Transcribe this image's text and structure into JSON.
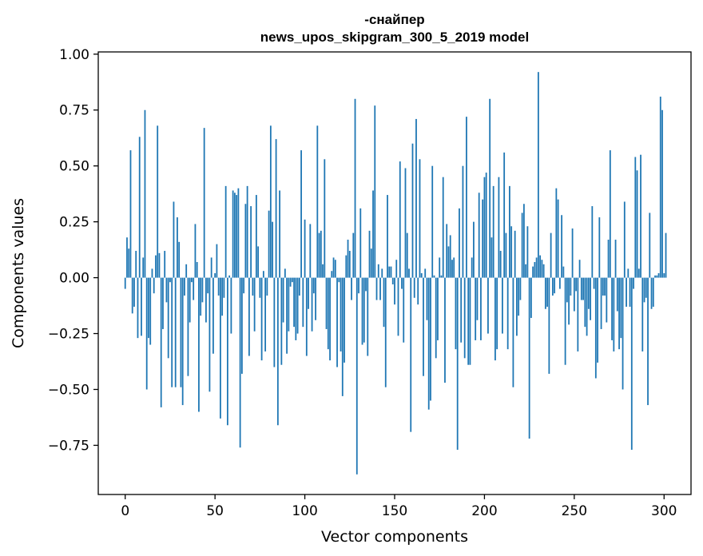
{
  "chart_data": {
    "type": "bar",
    "title": "-снайпер",
    "subtitle": "news_upos_skipgram_300_5_2019 model",
    "xlabel": "Vector components",
    "ylabel": "Components values",
    "xlim": [
      -15,
      315
    ],
    "ylim": [
      -0.97,
      1.01
    ],
    "xticks": [
      0,
      50,
      100,
      150,
      200,
      250,
      300
    ],
    "yticks": [
      -0.75,
      -0.5,
      -0.25,
      0.0,
      0.25,
      0.5,
      0.75,
      1.0
    ],
    "xtick_labels": [
      "0",
      "50",
      "100",
      "150",
      "200",
      "250",
      "300"
    ],
    "ytick_labels": [
      "−0.75",
      "−0.50",
      "−0.25",
      "0.00",
      "0.25",
      "0.50",
      "0.75",
      "1.00"
    ],
    "grid": false,
    "bar_color": "#1f77b4",
    "values": [
      -0.05,
      0.18,
      0.13,
      0.57,
      -0.16,
      -0.13,
      0.12,
      -0.27,
      0.63,
      -0.26,
      0.09,
      0.75,
      -0.5,
      -0.27,
      -0.3,
      0.04,
      -0.07,
      0.1,
      0.68,
      0.11,
      -0.58,
      -0.23,
      0.12,
      -0.11,
      -0.36,
      -0.02,
      -0.49,
      0.34,
      -0.49,
      0.27,
      0.16,
      -0.49,
      -0.57,
      -0.08,
      0.06,
      -0.44,
      -0.2,
      -0.02,
      -0.1,
      0.24,
      0.07,
      -0.6,
      -0.17,
      -0.11,
      0.67,
      -0.2,
      -0.07,
      -0.51,
      0.09,
      -0.34,
      0.02,
      0.15,
      -0.08,
      -0.63,
      -0.17,
      -0.09,
      0.41,
      -0.66,
      0.01,
      -0.25,
      0.39,
      0.38,
      0.37,
      0.4,
      -0.76,
      -0.43,
      -0.07,
      0.33,
      0.41,
      -0.35,
      0.32,
      -0.08,
      -0.24,
      0.37,
      0.14,
      -0.09,
      -0.37,
      0.03,
      -0.33,
      -0.08,
      0.3,
      0.68,
      0.25,
      -0.4,
      0.62,
      -0.66,
      0.39,
      -0.39,
      -0.2,
      0.04,
      -0.34,
      -0.24,
      -0.04,
      -0.02,
      -0.22,
      -0.28,
      -0.25,
      -0.08,
      0.57,
      -0.22,
      0.26,
      -0.35,
      -0.14,
      0.24,
      -0.24,
      -0.07,
      -0.19,
      0.68,
      0.2,
      0.21,
      0.06,
      0.53,
      -0.23,
      -0.32,
      -0.37,
      0.03,
      0.09,
      0.08,
      -0.4,
      -0.02,
      -0.33,
      -0.53,
      -0.38,
      0.1,
      0.17,
      0.12,
      -0.1,
      0.2,
      0.8,
      -0.88,
      -0.07,
      0.31,
      -0.3,
      -0.29,
      -0.06,
      -0.35,
      0.21,
      0.13,
      0.39,
      0.77,
      -0.1,
      0.06,
      -0.1,
      0.04,
      -0.22,
      -0.49,
      0.37,
      0.05,
      0.05,
      -0.03,
      -0.12,
      0.08,
      -0.26,
      0.52,
      -0.05,
      -0.29,
      0.49,
      0.2,
      0.04,
      -0.69,
      0.6,
      -0.09,
      0.71,
      -0.12,
      0.53,
      0.02,
      -0.44,
      0.04,
      -0.19,
      -0.59,
      -0.55,
      0.5,
      0.01,
      -0.36,
      -0.28,
      0.09,
      0.01,
      0.45,
      -0.47,
      0.24,
      0.14,
      0.19,
      0.08,
      0.09,
      -0.32,
      -0.77,
      0.31,
      -0.29,
      0.5,
      -0.36,
      0.72,
      -0.39,
      -0.39,
      0.09,
      0.25,
      -0.28,
      -0.19,
      0.38,
      -0.28,
      0.35,
      0.45,
      0.47,
      -0.25,
      0.8,
      0.18,
      0.41,
      -0.37,
      -0.32,
      0.45,
      0.12,
      -0.25,
      0.56,
      0.2,
      -0.32,
      0.41,
      0.23,
      -0.49,
      0.21,
      -0.26,
      -0.17,
      -0.1,
      0.29,
      0.33,
      0.06,
      0.23,
      -0.72,
      -0.18,
      0.05,
      0.07,
      0.09,
      0.92,
      0.1,
      0.08,
      0.06,
      -0.14,
      -0.13,
      -0.43,
      0.2,
      -0.08,
      -0.07,
      0.4,
      0.35,
      -0.05,
      0.28,
      0.05,
      -0.39,
      -0.11,
      -0.21,
      -0.08,
      0.22,
      -0.15,
      -0.06,
      -0.33,
      0.08,
      -0.1,
      -0.1,
      -0.22,
      -0.26,
      -0.14,
      -0.19,
      0.32,
      -0.05,
      -0.45,
      -0.38,
      0.27,
      -0.23,
      -0.08,
      -0.08,
      -0.2,
      0.17,
      0.57,
      -0.28,
      -0.33,
      0.17,
      -0.15,
      -0.32,
      -0.27,
      -0.5,
      0.34,
      -0.13,
      0.04,
      -0.13,
      -0.77,
      -0.05,
      0.54,
      0.48,
      0.04,
      0.55,
      -0.33,
      -0.11,
      -0.09,
      -0.57,
      0.29,
      -0.14,
      -0.13,
      0.01,
      0.01,
      0.02,
      0.81,
      0.75,
      0.02,
      0.2
    ]
  }
}
